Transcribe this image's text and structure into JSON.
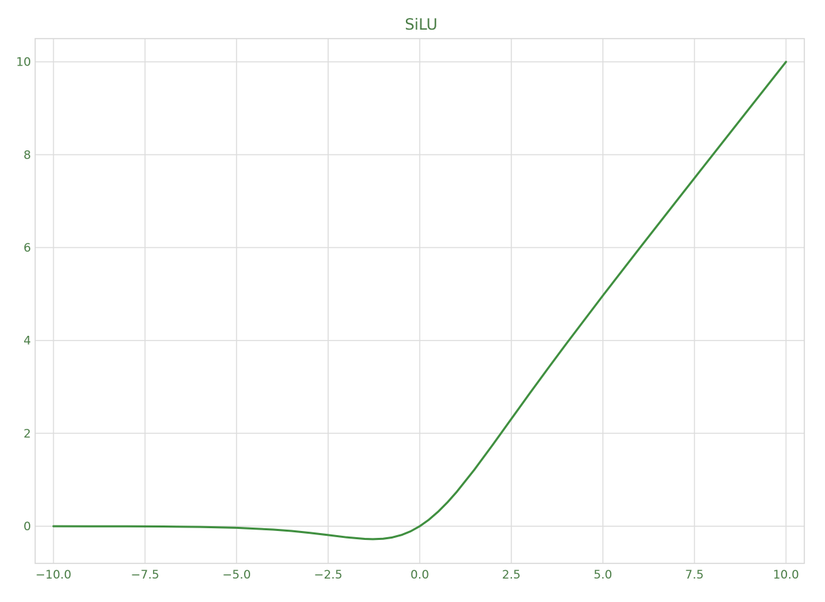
{
  "chart_data": {
    "type": "line",
    "title": "SiLU",
    "xlabel": "",
    "ylabel": "",
    "xlim": [
      -10.5,
      10.5
    ],
    "ylim": [
      -0.8,
      10.5
    ],
    "x_ticks": [
      -10.0,
      -7.5,
      -5.0,
      -2.5,
      0.0,
      2.5,
      5.0,
      7.5,
      10.0
    ],
    "x_tick_labels": [
      "−10.0",
      "−7.5",
      "−5.0",
      "−2.5",
      "0.0",
      "2.5",
      "5.0",
      "7.5",
      "10.0"
    ],
    "y_ticks": [
      0,
      2,
      4,
      6,
      8,
      10
    ],
    "y_tick_labels": [
      "0",
      "2",
      "4",
      "6",
      "8",
      "10"
    ],
    "grid": true,
    "series": [
      {
        "color": "#3f8f3f",
        "x": [
          -10.0,
          -9.0,
          -8.0,
          -7.0,
          -6.0,
          -5.0,
          -4.0,
          -3.5,
          -3.0,
          -2.5,
          -2.0,
          -1.5,
          -1.28,
          -1.0,
          -0.75,
          -0.5,
          -0.25,
          0.0,
          0.25,
          0.5,
          0.75,
          1.0,
          1.5,
          2.0,
          2.5,
          3.0,
          3.5,
          4.0,
          5.0,
          6.0,
          7.0,
          8.0,
          9.0,
          10.0
        ],
        "y": [
          -0.0005,
          -0.0011,
          -0.0027,
          -0.0064,
          -0.0148,
          -0.0335,
          -0.0719,
          -0.1029,
          -0.1423,
          -0.1896,
          -0.2384,
          -0.2736,
          -0.2785,
          -0.2689,
          -0.2411,
          -0.1888,
          -0.1095,
          0.0,
          0.1405,
          0.3112,
          0.5089,
          0.7311,
          1.2264,
          1.7616,
          2.3104,
          2.8577,
          3.3971,
          3.9281,
          4.9665,
          5.9852,
          6.9936,
          7.9973,
          8.999,
          9.9995
        ]
      }
    ],
    "colors": {
      "text": "#4a7d46",
      "grid": "#dddddd",
      "frame": "#d6d6d6"
    }
  }
}
